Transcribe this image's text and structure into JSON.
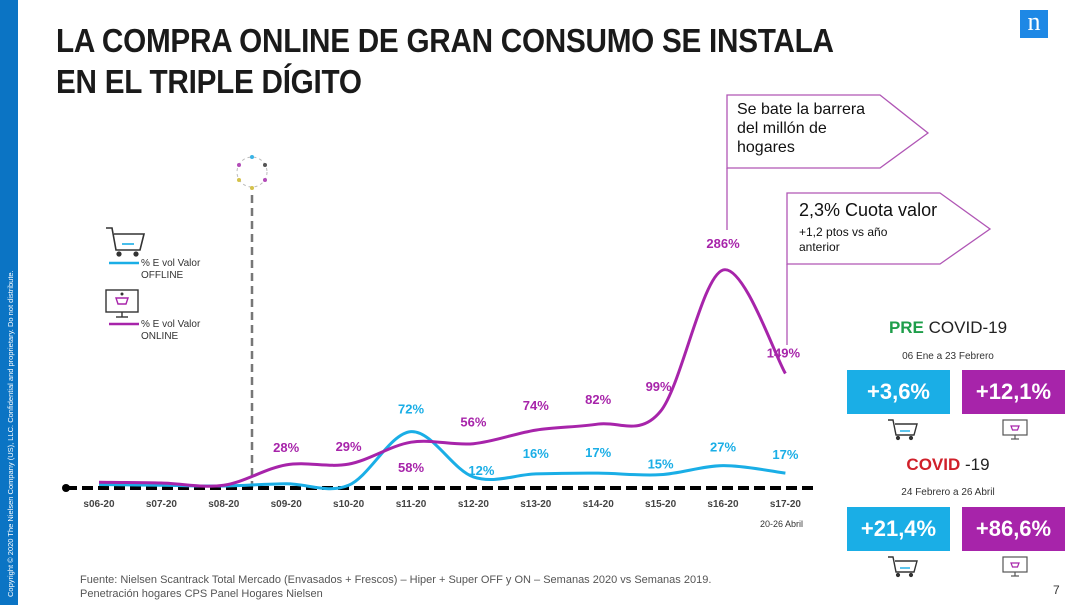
{
  "sidebar_text": "Copyright © 2020 The Nielsen Company (US), LLC. Confidential and proprietary. Do not distribute.",
  "title": "LA COMPRA ONLINE DE GRAN CONSUMO SE INSTALA EN EL TRIPLE DÍGITO",
  "logo": "n",
  "callouts": {
    "million": "Se bate la barrera del millón de hogares",
    "share_main": "2,3% Cuota valor",
    "share_sub": "+1,2 ptos vs año anterior"
  },
  "legend": {
    "offline": "% E vol Valor OFFLINE",
    "online": "% E vol Valor ONLINE"
  },
  "colors": {
    "offline": "#1aaee6",
    "online": "#a724aa",
    "pre": "#1e9e4a",
    "covid": "#d0202a"
  },
  "chart_data": {
    "type": "line",
    "categories": [
      "s06-20",
      "s07-20",
      "s08-20",
      "s09-20",
      "s10-20",
      "s11-20",
      "s12-20",
      "s13-20",
      "s14-20",
      "s15-20",
      "s16-20",
      "s17-20"
    ],
    "series": [
      {
        "name": "% E vol Valor OFFLINE",
        "values": [
          2,
          1,
          0,
          3,
          1,
          72,
          12,
          16,
          17,
          15,
          27,
          17
        ],
        "labels": [
          null,
          null,
          null,
          null,
          null,
          "72%",
          "12%",
          "16%",
          "17%",
          "15%",
          "27%",
          "17%"
        ]
      },
      {
        "name": "% E vol Valor ONLINE",
        "values": [
          5,
          4,
          1,
          28,
          29,
          58,
          56,
          74,
          82,
          99,
          286,
          149
        ],
        "labels": [
          null,
          null,
          null,
          "28%",
          "29%",
          "58%",
          "56%",
          "74%",
          "82%",
          "99%",
          "286%",
          "149%"
        ]
      }
    ],
    "ylim": [
      0,
      290
    ],
    "note": "20-26 Abril",
    "event_marker": "COVID-19 start between s08-20 and s09-20"
  },
  "panels": {
    "pre": {
      "head_accent": "PRE",
      "head_rest": " COVID-19",
      "period": "06 Ene a 23 Febrero",
      "offline": "+3,6%",
      "online": "+12,1%"
    },
    "covid": {
      "head_accent": "COVID",
      "head_rest": " -19",
      "period": "24 Febrero a 26 Abril",
      "offline": "+21,4%",
      "online": "+86,6%"
    }
  },
  "footer": {
    "line1": "Fuente: Nielsen Scantrack Total Mercado (Envasados + Frescos) – Hiper + Super OFF y ON – Semanas 2020 vs Semanas 2019.",
    "line2": "Penetración hogares CPS Panel Hogares Nielsen"
  },
  "page_number": "7"
}
